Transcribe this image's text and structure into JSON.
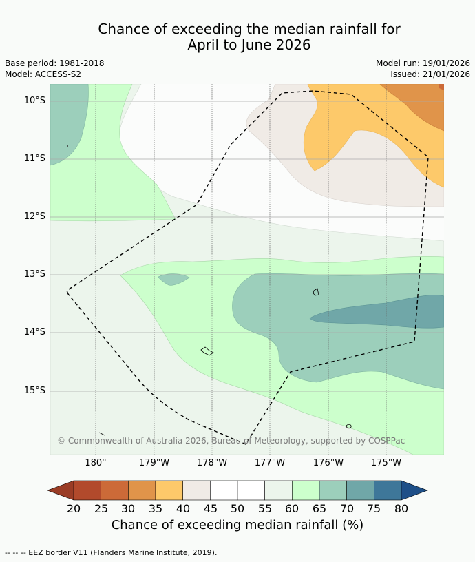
{
  "title_line1": "Chance of exceeding the median rainfall for",
  "title_line2": "April to June 2026",
  "base_period": "Base period: 1981-2018",
  "model": "Model: ACCESS-S2",
  "model_run": "Model run: 19/01/2026",
  "issued": "Issued: 21/01/2026",
  "lat_labels": [
    "10°S",
    "11°S",
    "12°S",
    "13°S",
    "14°S",
    "15°S"
  ],
  "lon_labels": [
    "180°",
    "179°W",
    "178°W",
    "177°W",
    "176°W",
    "175°W"
  ],
  "copyright": "© Commonwealth of Australia 2026, Bureau of Meteorology, supported by COSPPac",
  "colorbar": {
    "ticks": [
      "20",
      "25",
      "30",
      "35",
      "40",
      "45",
      "50",
      "55",
      "60",
      "65",
      "70",
      "75",
      "80"
    ],
    "colors": [
      "#b24a2c",
      "#cc6a38",
      "#e0944a",
      "#fdc96a",
      "#f0ebe6",
      "#ffffff",
      "#ffffff",
      "#ecf5ec",
      "#ccffcc",
      "#9ccfbb",
      "#70a7a8",
      "#3e7799"
    ],
    "under_color": "#9a3c25",
    "over_color": "#1e4f88",
    "title": "Chance of exceeding median rainfall (%)"
  },
  "footer": "--  --  -- EEZ border V11 (Flanders Marine Institute, 2019)."
}
